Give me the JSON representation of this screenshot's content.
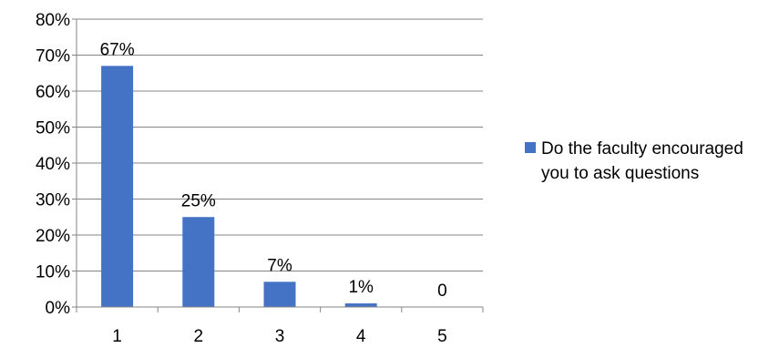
{
  "chart_data": {
    "type": "bar",
    "categories": [
      "1",
      "2",
      "3",
      "4",
      "5"
    ],
    "series": [
      {
        "name": "Do the faculty encouraged you to ask questions",
        "values": [
          0.67,
          0.25,
          0.07,
          0.01,
          0
        ],
        "labels": [
          "67%",
          "25%",
          "7%",
          "1%",
          "0"
        ],
        "color": "#4472C4"
      }
    ],
    "y_ticks": [
      "0%",
      "10%",
      "20%",
      "30%",
      "40%",
      "50%",
      "60%",
      "70%",
      "80%"
    ],
    "ylim": [
      0,
      0.8
    ],
    "grid": true,
    "legend_position": "right"
  }
}
